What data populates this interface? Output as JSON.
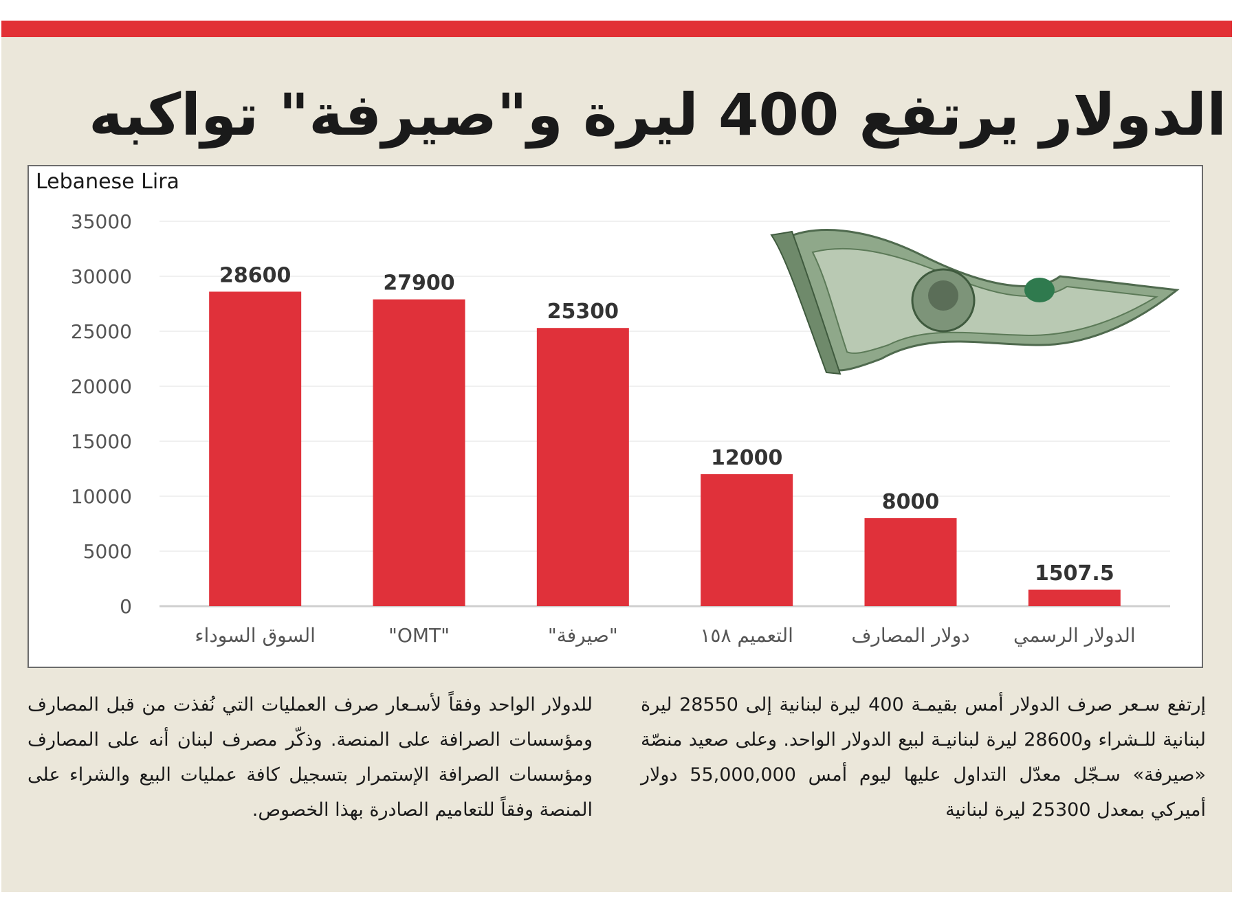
{
  "headline": "الدولار يرتفع 400 ليرة و\"صيرفة\" تواكبه",
  "colors": {
    "accent": "#e23135",
    "bar": "#e0313a",
    "background": "#ebe7da"
  },
  "chart_data": {
    "type": "bar",
    "ylabel": "Lebanese Lira",
    "ylim": [
      0,
      35000
    ],
    "yticks": [
      0,
      5000,
      10000,
      15000,
      20000,
      25000,
      30000,
      35000
    ],
    "categories": [
      "السوق السوداء",
      "\"OMT\"",
      "\"صيرفة\"",
      "التعميم ١٥٨",
      "دولار المصارف",
      "الدولار الرسمي"
    ],
    "values": [
      28600,
      27900,
      25300,
      12000,
      8000,
      1507.5
    ],
    "value_labels": [
      "28600",
      "27900",
      "25300",
      "12000",
      "8000",
      "1507.5"
    ],
    "grid": true
  },
  "decor": {
    "image": "dollar-bill"
  },
  "body": {
    "right_column": "إرتفع سـعر صرف الدولار أمس بقيمـة 400 ليرة لبنانية إلى 28550 ليرة لبنانية للـشراء و28600 ليرة لبنانيـة لبيع الدولار الواحد. وعلى صعيد منصّة «صيرفة» سـجّل معدّل التداول عليها ليوم أمس 55,000,000 دولار أميركي بمعدل 25300 ليرة لبنانية",
    "left_column": "للدولار الواحد وفقاً لأسـعار صرف العمليات التي نُفذت من قبل المصارف ومؤسسات الصرافة على المنصة. وذكّر مصرف لبنان أنه على المصارف ومؤسسات الصرافة الإستمرار بتسجيل كافة عمليات البيع والشراء على المنصة وفقاً للتعاميم الصادرة بهذا الخصوص."
  }
}
